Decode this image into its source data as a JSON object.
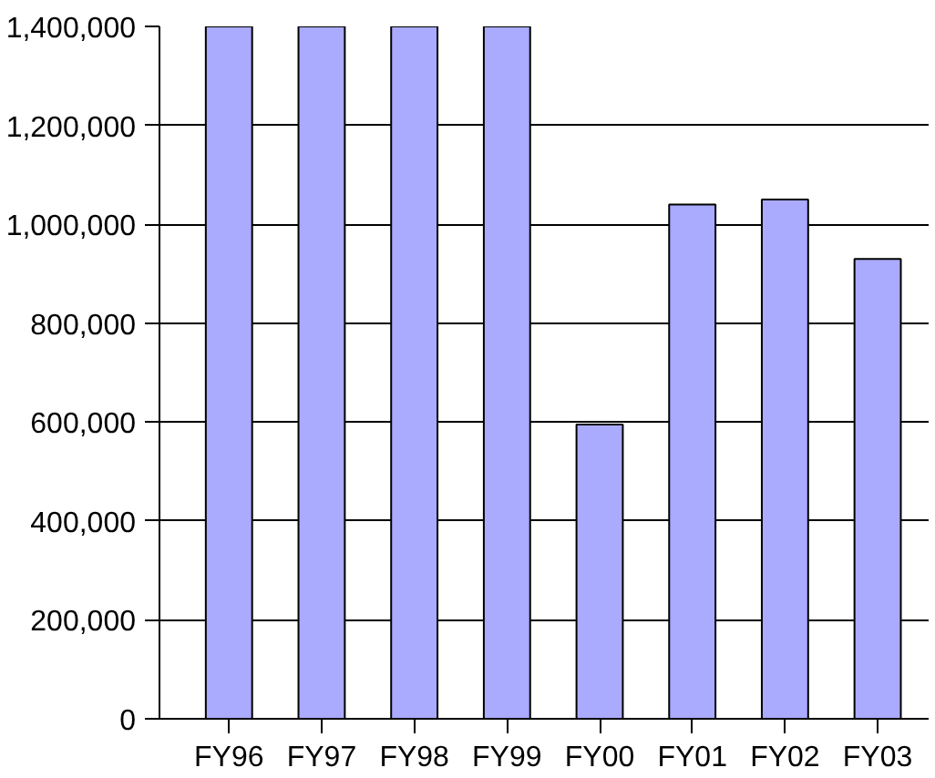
{
  "chart_data": {
    "type": "bar",
    "categories": [
      "FY96",
      "FY97",
      "FY98",
      "FY99",
      "FY00",
      "FY01",
      "FY02",
      "FY03"
    ],
    "values": [
      1400000,
      1400000,
      1400000,
      1400000,
      595000,
      1040000,
      1050000,
      930000
    ],
    "color": "#aaaaff",
    "ylim": [
      0,
      1400000
    ],
    "yticks": [
      {
        "value": 0,
        "label": "0"
      },
      {
        "value": 200000,
        "label": "200,000"
      },
      {
        "value": 400000,
        "label": "400,000"
      },
      {
        "value": 600000,
        "label": "600,000"
      },
      {
        "value": 800000,
        "label": "800,000"
      },
      {
        "value": 1000000,
        "label": "1,000,000"
      },
      {
        "value": 1200000,
        "label": "1,200,000"
      },
      {
        "value": 1400000,
        "label": "1,400,000"
      }
    ],
    "grid": "y"
  }
}
